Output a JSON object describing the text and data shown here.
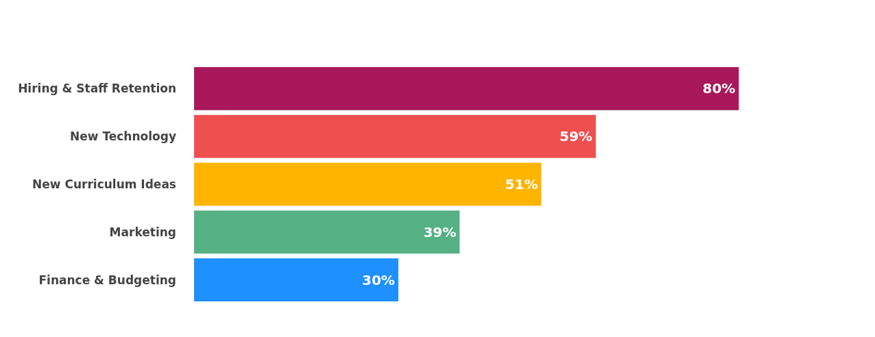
{
  "chart_data": {
    "type": "bar",
    "orientation": "horizontal",
    "categories": [
      "Hiring & Staff Retention",
      "New Technology",
      "New Curriculum Ideas",
      "Marketing",
      "Finance & Budgeting"
    ],
    "values": [
      80,
      59,
      51,
      39,
      30
    ],
    "colors": [
      "#a8185a",
      "#ee4f4f",
      "#ffb400",
      "#55b083",
      "#1e90ff"
    ],
    "value_labels": [
      "80%",
      "59%",
      "51%",
      "39%",
      "30%"
    ],
    "xlim": [
      0,
      100
    ]
  }
}
